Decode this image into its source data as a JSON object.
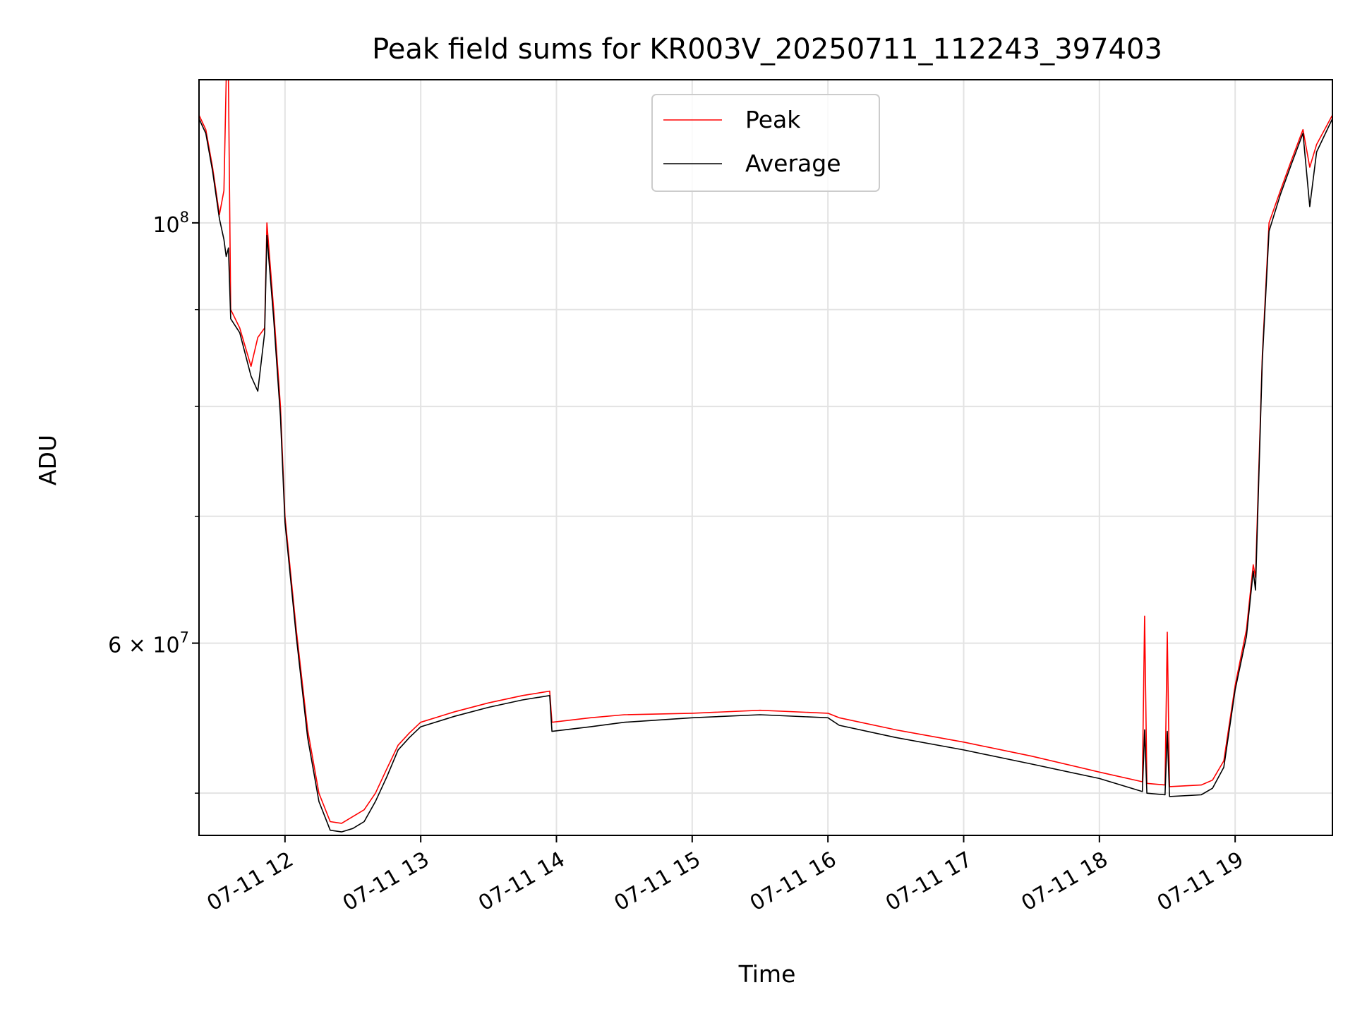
{
  "chart_data": {
    "type": "line",
    "title": "Peak field sums for KR003V_20250711_112243_397403",
    "xlabel": "Time",
    "ylabel": "ADU",
    "yscale": "log",
    "grid": true,
    "legend_position": "top-center",
    "xlim": [
      "07-11 11:22",
      "07-11 19:43"
    ],
    "ylim": [
      47500000,
      119000000
    ],
    "x_ticks": [
      "07-11 12",
      "07-11 13",
      "07-11 14",
      "07-11 15",
      "07-11 16",
      "07-11 17",
      "07-11 18",
      "07-11 19"
    ],
    "y_ticks": [
      {
        "label_base": "10",
        "label_exp": "8",
        "value": 100000000
      },
      {
        "label_base": "6 × 10",
        "label_exp": "7",
        "value": 60000000
      }
    ],
    "series": [
      {
        "name": "Peak",
        "color": "#ff0000",
        "x": [
          "07-11 11:22",
          "07-11 11:25",
          "07-11 11:28",
          "07-11 11:31",
          "07-11 11:33",
          "07-11 11:34",
          "07-11 11:35",
          "07-11 11:36",
          "07-11 11:40",
          "07-11 11:45",
          "07-11 11:48",
          "07-11 11:51",
          "07-11 11:52",
          "07-11 11:55",
          "07-11 11:58",
          "07-11 12:00",
          "07-11 12:05",
          "07-11 12:10",
          "07-11 12:15",
          "07-11 12:20",
          "07-11 12:25",
          "07-11 12:30",
          "07-11 12:35",
          "07-11 12:40",
          "07-11 12:45",
          "07-11 12:50",
          "07-11 12:55",
          "07-11 13:00",
          "07-11 13:15",
          "07-11 13:30",
          "07-11 13:45",
          "07-11 13:57",
          "07-11 13:58",
          "07-11 14:15",
          "07-11 14:30",
          "07-11 15:00",
          "07-11 15:30",
          "07-11 16:00",
          "07-11 16:05",
          "07-11 16:30",
          "07-11 17:00",
          "07-11 17:30",
          "07-11 18:00",
          "07-11 18:19",
          "07-11 18:20",
          "07-11 18:21",
          "07-11 18:29",
          "07-11 18:30",
          "07-11 18:31",
          "07-11 18:45",
          "07-11 18:50",
          "07-11 18:55",
          "07-11 19:00",
          "07-11 19:05",
          "07-11 19:08",
          "07-11 19:09",
          "07-11 19:12",
          "07-11 19:15",
          "07-11 19:20",
          "07-11 19:25",
          "07-11 19:30",
          "07-11 19:33",
          "07-11 19:36",
          "07-11 19:43"
        ],
        "y": [
          114000000,
          112000000,
          107000000,
          101000000,
          104000000,
          119000000,
          119000000,
          90000000,
          88000000,
          84000000,
          87000000,
          88000000,
          100000000,
          90000000,
          80000000,
          70000000,
          61000000,
          54000000,
          50000000,
          48300000,
          48200000,
          48600000,
          49000000,
          50000000,
          51500000,
          53000000,
          53800000,
          54500000,
          55200000,
          55800000,
          56300000,
          56600000,
          54500000,
          54800000,
          55000000,
          55100000,
          55300000,
          55100000,
          54800000,
          54000000,
          53200000,
          52300000,
          51300000,
          50700000,
          62000000,
          50600000,
          50500000,
          60800000,
          50400000,
          50500000,
          50800000,
          52000000,
          57000000,
          61000000,
          66000000,
          65000000,
          85000000,
          100000000,
          104000000,
          108000000,
          112000000,
          107000000,
          110000000,
          114000000
        ]
      },
      {
        "name": "Average",
        "color": "#000000",
        "x": [
          "07-11 11:22",
          "07-11 11:25",
          "07-11 11:28",
          "07-11 11:31",
          "07-11 11:33",
          "07-11 11:34",
          "07-11 11:35",
          "07-11 11:36",
          "07-11 11:40",
          "07-11 11:45",
          "07-11 11:48",
          "07-11 11:51",
          "07-11 11:52",
          "07-11 11:55",
          "07-11 11:58",
          "07-11 12:00",
          "07-11 12:05",
          "07-11 12:10",
          "07-11 12:15",
          "07-11 12:20",
          "07-11 12:25",
          "07-11 12:30",
          "07-11 12:35",
          "07-11 12:40",
          "07-11 12:45",
          "07-11 12:50",
          "07-11 12:55",
          "07-11 13:00",
          "07-11 13:15",
          "07-11 13:30",
          "07-11 13:45",
          "07-11 13:57",
          "07-11 13:58",
          "07-11 14:15",
          "07-11 14:30",
          "07-11 15:00",
          "07-11 15:30",
          "07-11 16:00",
          "07-11 16:05",
          "07-11 16:30",
          "07-11 17:00",
          "07-11 17:30",
          "07-11 18:00",
          "07-11 18:19",
          "07-11 18:20",
          "07-11 18:21",
          "07-11 18:29",
          "07-11 18:30",
          "07-11 18:31",
          "07-11 18:45",
          "07-11 18:50",
          "07-11 18:55",
          "07-11 19:00",
          "07-11 19:05",
          "07-11 19:08",
          "07-11 19:09",
          "07-11 19:12",
          "07-11 19:15",
          "07-11 19:20",
          "07-11 19:25",
          "07-11 19:30",
          "07-11 19:33",
          "07-11 19:36",
          "07-11 19:43"
        ],
        "y": [
          113500000,
          111500000,
          106500000,
          100500000,
          98000000,
          96000000,
          97000000,
          89000000,
          87500000,
          83000000,
          81500000,
          87500000,
          98500000,
          89000000,
          79000000,
          69500000,
          60500000,
          53500000,
          49500000,
          47800000,
          47700000,
          47900000,
          48300000,
          49500000,
          51000000,
          52700000,
          53500000,
          54200000,
          54900000,
          55500000,
          56000000,
          56300000,
          53900000,
          54200000,
          54500000,
          54800000,
          55000000,
          54800000,
          54300000,
          53500000,
          52700000,
          51800000,
          50900000,
          50100000,
          54000000,
          50000000,
          49900000,
          53900000,
          49800000,
          49900000,
          50300000,
          51600000,
          56700000,
          60500000,
          65500000,
          64000000,
          84500000,
          99000000,
          103500000,
          107500000,
          111500000,
          102000000,
          109000000,
          113500000
        ]
      }
    ]
  }
}
